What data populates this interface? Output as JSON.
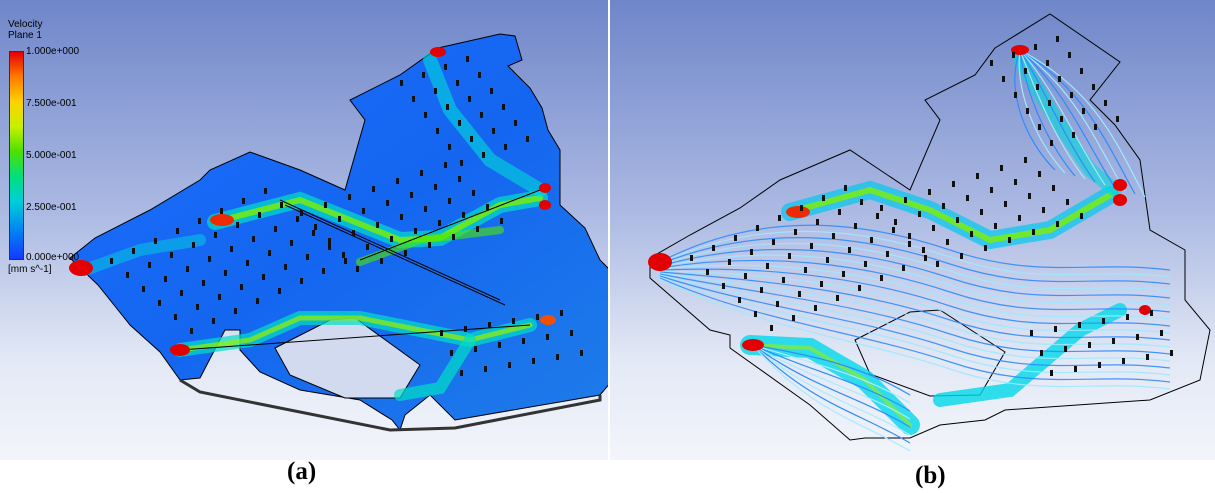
{
  "legend": {
    "title": "Velocity",
    "subtitle": "Plane 1",
    "ticks": [
      "1.000e+000",
      "7.500e-001",
      "5.000e-001",
      "2.500e-001",
      "0.000e+000"
    ],
    "unit": "[mm s^-1]",
    "max": 1.0,
    "min": 0.0,
    "colormap": [
      "#e30000",
      "#ff7a00",
      "#ffd200",
      "#c8f000",
      "#4fe000",
      "#00e07a",
      "#00d0d8",
      "#0090f0",
      "#1438ff"
    ]
  },
  "panels": [
    {
      "id": "a",
      "caption": "(a)"
    },
    {
      "id": "b",
      "caption": "(b)"
    }
  ],
  "colors": {
    "background_top": "#6f86c9",
    "background_bottom": "#f3f5fb",
    "floor_base": "#1a5cff",
    "hot": "#e30000"
  }
}
